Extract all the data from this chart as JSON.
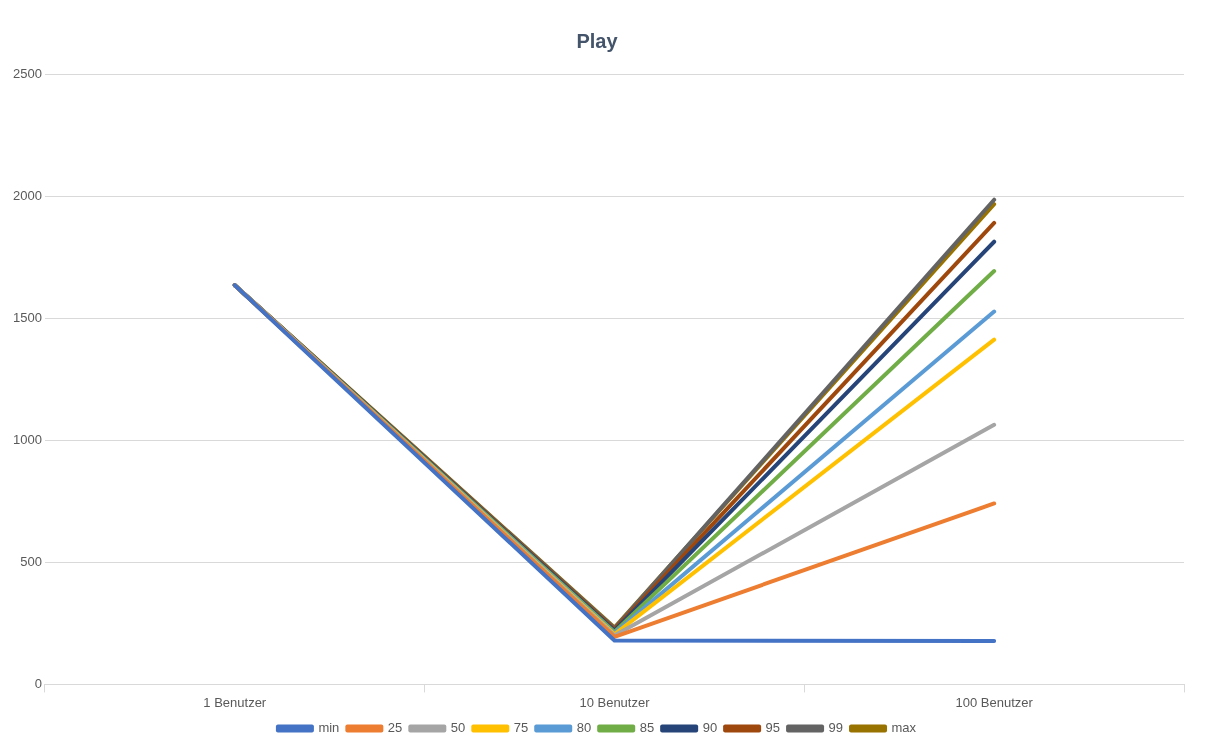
{
  "chart_data": {
    "type": "line",
    "title": "Play",
    "categories": [
      "1 Benutzer",
      "10 Benutzer",
      "100 Benutzer"
    ],
    "series": [
      {
        "name": "min",
        "color": "#4472c4",
        "values": [
          1635,
          180,
          178
        ]
      },
      {
        "name": "25",
        "color": "#ed7d31",
        "values": [
          1635,
          195,
          741
        ]
      },
      {
        "name": "50",
        "color": "#a5a5a5",
        "values": [
          1635,
          200,
          1063
        ]
      },
      {
        "name": "75",
        "color": "#ffc000",
        "values": [
          1635,
          205,
          1412
        ]
      },
      {
        "name": "80",
        "color": "#5b9bd5",
        "values": [
          1635,
          210,
          1527
        ]
      },
      {
        "name": "85",
        "color": "#70ad47",
        "values": [
          1635,
          215,
          1693
        ]
      },
      {
        "name": "90",
        "color": "#264478",
        "values": [
          1635,
          220,
          1813
        ]
      },
      {
        "name": "95",
        "color": "#9e480e",
        "values": [
          1635,
          225,
          1890
        ]
      },
      {
        "name": "99",
        "color": "#636363",
        "values": [
          1635,
          230,
          1985
        ]
      },
      {
        "name": "max",
        "color": "#997300",
        "values": [
          1635,
          233,
          1967
        ]
      }
    ],
    "ylim": [
      0,
      2500
    ],
    "yticks": [
      0,
      500,
      1000,
      1500,
      2000,
      2500
    ],
    "grid": "y",
    "legend": "bottom",
    "marker": "none",
    "line_style": "solid"
  }
}
